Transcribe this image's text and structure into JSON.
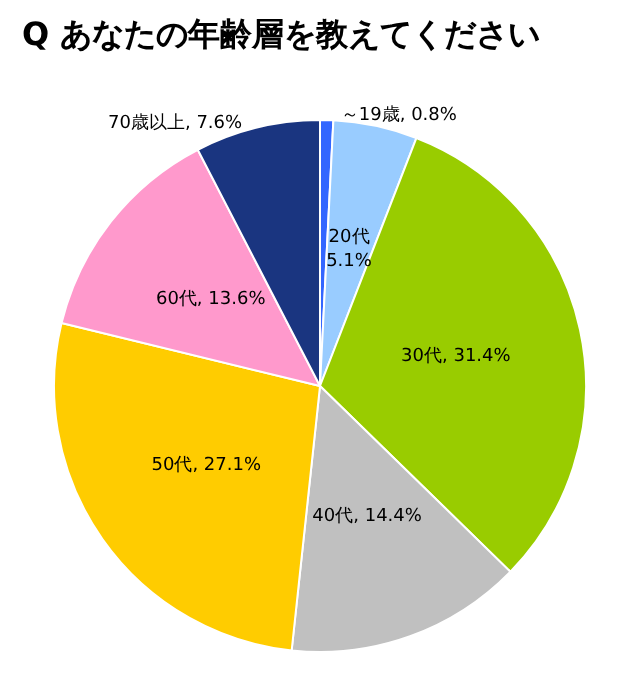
{
  "chart_data": {
    "type": "pie",
    "title": "Q あなたの年齢層を教えてください",
    "categories": [
      "～19歳",
      "20代",
      "30代",
      "40代",
      "50代",
      "60代",
      "70歳以上"
    ],
    "values": [
      0.8,
      5.1,
      31.4,
      14.4,
      27.1,
      13.6,
      7.6
    ],
    "colors": [
      "#3366ff",
      "#99ccff",
      "#99cc00",
      "#c0c0c0",
      "#ffcc00",
      "#ff99cc",
      "#1a3580"
    ],
    "value_labels": [
      "0.8%",
      "5.1%",
      "31.4%",
      "14.4%",
      "27.1%",
      "13.6%",
      "7.6%"
    ],
    "legend": false
  }
}
